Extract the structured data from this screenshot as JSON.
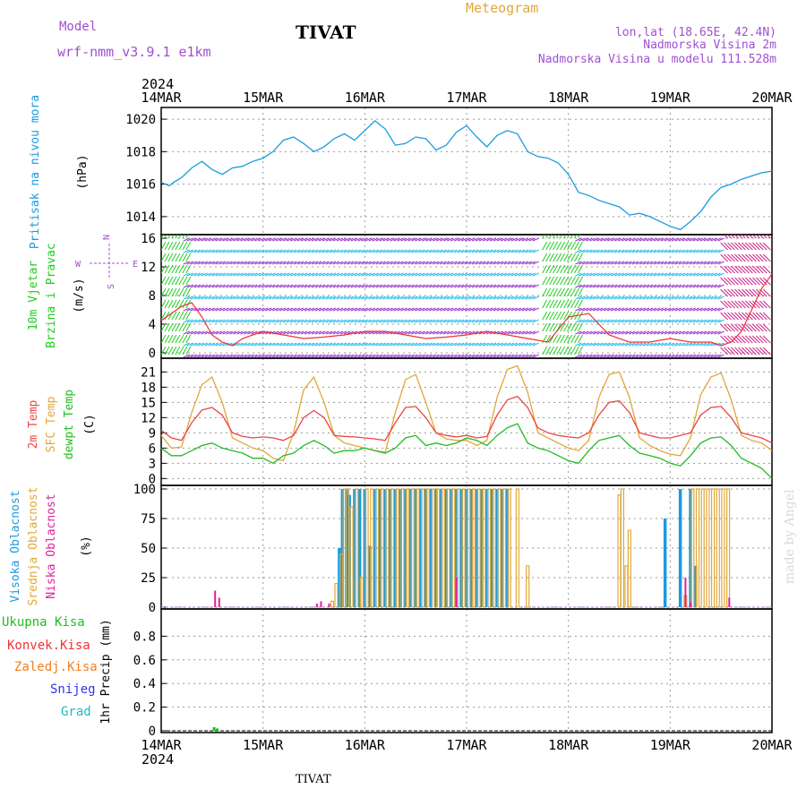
{
  "header": {
    "model_label": "Model",
    "model_name": "wrf-nmm_v3.9.1 e1km",
    "station": "TIVAT",
    "product": "Meteogram",
    "lonlat": "lon,lat (18.65E, 42.4N)",
    "altitude": "Nadmorska Visina 2m",
    "model_altitude": "Nadmorska Visina u modelu 111.528m",
    "credit": "made by Angel",
    "footer_station": "TIVAT"
  },
  "colors": {
    "pressure": "#1a9be0",
    "wind_green": "#22cc22",
    "wind_cyan": "#22bbee",
    "wind_purple": "#9933cc",
    "wind_red": "#ee3333",
    "wind_orange": "#f0a030",
    "wind_magenta": "#cc2288",
    "temp2m": "#ee4444",
    "sfc": "#e0a83a",
    "dewpt": "#22bb22",
    "cloud_high": "#1a9be0",
    "cloud_mid": "#e0a83a",
    "cloud_low": "#dd2299",
    "precip_total": "#22bb22",
    "precip_conv": "#ee3333",
    "precip_frz": "#f07f20",
    "precip_snow": "#3333ee",
    "precip_grad": "#22bbbb",
    "title_purple": "#a050d0",
    "title_orange": "#e0a83a"
  },
  "time_axis": {
    "year": "2024",
    "ticks": [
      "14MAR",
      "15MAR",
      "16MAR",
      "17MAR",
      "18MAR",
      "19MAR",
      "20MAR"
    ]
  },
  "compass": {
    "n": "N",
    "s": "S",
    "e": "E",
    "w": "W"
  },
  "chart_data": [
    {
      "type": "line",
      "panel": "pressure",
      "ylabel_title": "Pritisak na nivou mora",
      "ylabel_unit": "(hPa)",
      "ylim": [
        1013,
        1020.5
      ],
      "yticks": [
        1014,
        1016,
        1018,
        1020
      ],
      "grid": true,
      "series": [
        {
          "name": "Pritisak na nivou mora",
          "x": [
            0,
            0.08,
            0.12,
            0.2,
            0.3,
            0.4,
            0.5,
            0.6,
            0.7,
            0.8,
            0.9,
            1.0,
            1.1,
            1.2,
            1.3,
            1.4,
            1.5,
            1.6,
            1.7,
            1.8,
            1.9,
            2.0,
            2.1,
            2.2,
            2.3,
            2.4,
            2.5,
            2.6,
            2.7,
            2.8,
            2.9,
            3.0,
            3.1,
            3.2,
            3.3,
            3.4,
            3.5,
            3.6,
            3.7,
            3.8,
            3.9,
            4.0,
            4.1,
            4.2,
            4.3,
            4.4,
            4.5,
            4.6,
            4.7,
            4.8,
            4.9,
            5.0,
            5.1,
            5.2,
            5.3,
            5.4,
            5.5,
            5.6,
            5.7,
            5.8,
            5.9,
            6.0
          ],
          "y": [
            1016.1,
            1015.9,
            1016.1,
            1016.4,
            1017.0,
            1017.4,
            1016.9,
            1016.6,
            1017.0,
            1017.1,
            1017.4,
            1017.6,
            1018.0,
            1018.7,
            1018.9,
            1018.5,
            1018.0,
            1018.3,
            1018.8,
            1019.1,
            1018.7,
            1019.3,
            1019.9,
            1019.4,
            1018.4,
            1018.5,
            1018.9,
            1018.8,
            1018.1,
            1018.4,
            1019.2,
            1019.6,
            1018.9,
            1018.3,
            1019.0,
            1019.3,
            1019.1,
            1018.0,
            1017.7,
            1017.6,
            1017.3,
            1016.6,
            1015.5,
            1015.3,
            1015.0,
            1014.8,
            1014.6,
            1014.1,
            1014.2,
            1014.0,
            1013.7,
            1013.4,
            1013.2,
            1013.7,
            1014.3,
            1015.2,
            1015.8,
            1016.0,
            1016.3,
            1016.5,
            1016.7,
            1016.8
          ]
        }
      ]
    },
    {
      "type": "line",
      "panel": "wind",
      "ylabel_title": "10m Vjetar",
      "ylabel_title2": "Brzina i Pravac",
      "ylabel_unit": "(m/s)",
      "ylim": [
        -0.5,
        16
      ],
      "yticks": [
        0,
        4,
        8,
        12,
        16
      ],
      "grid": true,
      "series": [
        {
          "name": "Brzina",
          "x": [
            0,
            0.1,
            0.2,
            0.3,
            0.4,
            0.5,
            0.6,
            0.7,
            0.8,
            0.9,
            1.0,
            1.2,
            1.4,
            1.6,
            1.8,
            2.0,
            2.2,
            2.4,
            2.6,
            2.8,
            3.0,
            3.2,
            3.4,
            3.6,
            3.8,
            4.0,
            4.2,
            4.4,
            4.6,
            4.8,
            5.0,
            5.2,
            5.4,
            5.5,
            5.6,
            5.7,
            5.8,
            5.9,
            6.0
          ],
          "y": [
            4.5,
            5.5,
            6.5,
            7.0,
            5.0,
            2.5,
            1.5,
            1.0,
            2.0,
            2.5,
            3.0,
            2.5,
            2.0,
            2.2,
            2.5,
            3.0,
            3.0,
            2.5,
            2.0,
            2.2,
            2.5,
            3.0,
            2.5,
            2.0,
            1.5,
            5.0,
            5.5,
            2.5,
            1.5,
            1.5,
            2.0,
            1.5,
            1.5,
            1.0,
            1.5,
            3.0,
            6.0,
            9.0,
            11.0
          ]
        }
      ]
    },
    {
      "type": "line",
      "panel": "temperature",
      "ylabel_title": "2m Temp",
      "ylabel_title2": "SFC Temp",
      "ylabel_title3": "dewpt Temp",
      "ylabel_unit": "(C)",
      "ylim": [
        -1,
        23
      ],
      "yticks": [
        0,
        3,
        6,
        9,
        12,
        15,
        18,
        21
      ],
      "grid": true,
      "series": [
        {
          "name": "2m Temp",
          "x": [
            0,
            0.1,
            0.2,
            0.3,
            0.4,
            0.5,
            0.6,
            0.7,
            0.8,
            0.9,
            1.0,
            1.1,
            1.2,
            1.3,
            1.4,
            1.5,
            1.6,
            1.7,
            1.8,
            1.9,
            2.0,
            2.1,
            2.2,
            2.3,
            2.4,
            2.5,
            2.6,
            2.7,
            2.8,
            2.9,
            3.0,
            3.1,
            3.2,
            3.3,
            3.4,
            3.5,
            3.6,
            3.7,
            3.8,
            3.9,
            4.0,
            4.1,
            4.2,
            4.3,
            4.4,
            4.5,
            4.6,
            4.7,
            4.8,
            4.9,
            5.0,
            5.1,
            5.2,
            5.3,
            5.4,
            5.5,
            5.6,
            5.7,
            5.8,
            5.9,
            6.0
          ],
          "y": [
            9.5,
            8.0,
            7.5,
            11.0,
            13.5,
            14.0,
            12.5,
            9.0,
            8.3,
            8.0,
            8.2,
            8.0,
            7.5,
            8.5,
            12.0,
            13.4,
            12.0,
            8.5,
            8.3,
            8.2,
            8.0,
            7.8,
            7.5,
            11.0,
            14.0,
            14.2,
            12.0,
            9.0,
            8.5,
            8.2,
            8.5,
            8.0,
            8.3,
            12.5,
            15.5,
            16.2,
            14.0,
            10.0,
            9.0,
            8.5,
            8.2,
            8.0,
            9.0,
            12.5,
            15.0,
            15.3,
            13.0,
            9.0,
            8.5,
            8.0,
            8.0,
            8.5,
            9.0,
            12.5,
            14.0,
            14.2,
            12.0,
            9.0,
            8.5,
            8.0,
            7.0
          ]
        },
        {
          "name": "SFC Temp",
          "x": [
            0,
            0.1,
            0.2,
            0.3,
            0.4,
            0.5,
            0.6,
            0.7,
            0.8,
            0.9,
            1.0,
            1.1,
            1.2,
            1.3,
            1.4,
            1.5,
            1.6,
            1.7,
            1.8,
            1.9,
            2.0,
            2.1,
            2.2,
            2.3,
            2.4,
            2.5,
            2.6,
            2.7,
            2.8,
            2.9,
            3.0,
            3.1,
            3.2,
            3.3,
            3.4,
            3.5,
            3.6,
            3.7,
            3.8,
            3.9,
            4.0,
            4.1,
            4.2,
            4.3,
            4.4,
            4.5,
            4.6,
            4.7,
            4.8,
            4.9,
            5.0,
            5.1,
            5.2,
            5.3,
            5.4,
            5.5,
            5.6,
            5.7,
            5.8,
            5.9,
            6.0
          ],
          "y": [
            8.5,
            6.0,
            6.2,
            13.0,
            18.5,
            20.0,
            15.0,
            8.0,
            7.0,
            6.0,
            5.5,
            4.0,
            3.5,
            9.0,
            17.5,
            20.0,
            15.0,
            8.5,
            7.0,
            6.5,
            6.0,
            5.5,
            5.2,
            13.0,
            19.5,
            20.5,
            15.0,
            9.0,
            7.8,
            7.5,
            7.5,
            6.5,
            7.5,
            16.0,
            21.5,
            22.2,
            17.0,
            9.0,
            8.0,
            7.0,
            6.0,
            5.5,
            7.5,
            16.0,
            20.5,
            21.0,
            16.0,
            8.0,
            6.5,
            5.5,
            4.8,
            4.5,
            8.0,
            16.5,
            20.0,
            20.8,
            15.5,
            8.5,
            7.5,
            7.0,
            5.5
          ]
        },
        {
          "name": "dewpt Temp",
          "x": [
            0,
            0.1,
            0.2,
            0.3,
            0.4,
            0.5,
            0.6,
            0.7,
            0.8,
            0.9,
            1.0,
            1.1,
            1.2,
            1.3,
            1.4,
            1.5,
            1.6,
            1.7,
            1.8,
            1.9,
            2.0,
            2.1,
            2.2,
            2.3,
            2.4,
            2.5,
            2.6,
            2.7,
            2.8,
            2.9,
            3.0,
            3.1,
            3.2,
            3.3,
            3.4,
            3.5,
            3.6,
            3.7,
            3.8,
            3.9,
            4.0,
            4.1,
            4.2,
            4.3,
            4.4,
            4.5,
            4.6,
            4.7,
            4.8,
            4.9,
            5.0,
            5.1,
            5.2,
            5.3,
            5.4,
            5.5,
            5.6,
            5.7,
            5.8,
            5.9,
            6.0
          ],
          "y": [
            6.0,
            4.5,
            4.5,
            5.5,
            6.5,
            7.0,
            6.0,
            5.5,
            5.0,
            4.0,
            4.0,
            3.0,
            4.5,
            5.0,
            6.5,
            7.5,
            6.5,
            5.0,
            5.5,
            5.5,
            6.0,
            5.5,
            5.0,
            6.0,
            8.0,
            8.5,
            6.5,
            7.0,
            6.5,
            7.0,
            8.0,
            7.5,
            6.5,
            8.5,
            10.0,
            10.8,
            7.0,
            6.0,
            5.5,
            4.5,
            3.5,
            3.0,
            5.5,
            7.5,
            8.0,
            8.5,
            6.5,
            5.0,
            4.5,
            4.0,
            3.0,
            2.5,
            4.5,
            7.0,
            8.0,
            8.2,
            6.5,
            4.0,
            3.0,
            2.0,
            0.0
          ]
        }
      ]
    },
    {
      "type": "bar",
      "panel": "clouds",
      "ylabel_title": "Visoka Oblacnost",
      "ylabel_title2": "Srednja Oblacnost",
      "ylabel_title3": "Niska Oblacnost",
      "ylabel_unit": "(%)",
      "ylim": [
        0,
        100
      ],
      "yticks": [
        0,
        25,
        50,
        75,
        100
      ],
      "grid": true,
      "series": [
        {
          "name": "Visoka Oblacnost",
          "x": [
            1.75,
            1.78,
            1.82,
            1.85,
            1.9,
            1.95,
            2.0,
            2.05,
            2.1,
            2.15,
            2.2,
            2.25,
            2.3,
            2.35,
            2.4,
            2.45,
            2.5,
            2.55,
            2.6,
            2.65,
            2.7,
            2.75,
            2.8,
            2.85,
            2.9,
            2.95,
            3.0,
            3.05,
            3.1,
            3.15,
            3.2,
            3.25,
            3.3,
            3.35,
            3.4,
            4.95,
            5.1,
            5.2,
            5.25
          ],
          "y": [
            50,
            100,
            100,
            95,
            100,
            100,
            100,
            52,
            100,
            100,
            100,
            100,
            100,
            100,
            100,
            100,
            100,
            100,
            100,
            100,
            100,
            100,
            100,
            100,
            100,
            100,
            100,
            100,
            100,
            100,
            100,
            100,
            100,
            100,
            100,
            75,
            100,
            100,
            35
          ]
        },
        {
          "name": "Srednja Oblacnost",
          "x": [
            1.68,
            1.72,
            1.77,
            1.8,
            1.83,
            1.87,
            1.92,
            1.97,
            2.02,
            2.07,
            2.12,
            2.17,
            2.22,
            2.27,
            2.32,
            2.37,
            2.42,
            2.47,
            2.52,
            2.57,
            2.62,
            2.67,
            2.72,
            2.77,
            2.82,
            2.87,
            2.92,
            2.97,
            3.02,
            3.07,
            3.12,
            3.17,
            3.22,
            3.27,
            3.32,
            3.37,
            3.42,
            3.5,
            3.6,
            4.5,
            4.53,
            4.57,
            4.6,
            5.15,
            5.22,
            5.27,
            5.32,
            5.37,
            5.42,
            5.47,
            5.52,
            5.57
          ],
          "y": [
            5,
            20,
            45,
            100,
            100,
            85,
            100,
            25,
            100,
            100,
            100,
            100,
            100,
            100,
            100,
            100,
            100,
            100,
            100,
            100,
            100,
            100,
            100,
            100,
            100,
            100,
            100,
            100,
            100,
            100,
            100,
            100,
            100,
            100,
            100,
            100,
            100,
            100,
            35,
            95,
            100,
            35,
            65,
            10,
            100,
            100,
            100,
            100,
            100,
            100,
            100,
            100
          ]
        },
        {
          "name": "Niska Oblacnost",
          "x": [
            0.53,
            0.57,
            1.53,
            1.57,
            1.65,
            2.9,
            5.15,
            5.2,
            5.58
          ],
          "y": [
            14,
            8,
            3,
            5,
            3,
            25,
            25,
            4,
            8
          ]
        }
      ]
    },
    {
      "type": "bar",
      "panel": "precip",
      "ylabel_unit": "1hr Precip (mm)",
      "legend": [
        "Ukupna Kisa",
        "Konvek.Kisa",
        "Zaledj.Kisa",
        "Snijeg",
        "Grad"
      ],
      "ylim": [
        0,
        1.0
      ],
      "yticks": [
        0,
        0.2,
        0.4,
        0.6,
        0.8
      ],
      "grid": true,
      "series": [
        {
          "name": "Ukupna Kisa",
          "x": [
            0.52,
            0.55
          ],
          "y": [
            0.03,
            0.02
          ]
        },
        {
          "name": "Konvek.Kisa",
          "x": [],
          "y": []
        },
        {
          "name": "Zaledj.Kisa",
          "x": [],
          "y": []
        },
        {
          "name": "Snijeg",
          "x": [],
          "y": []
        },
        {
          "name": "Grad",
          "x": [],
          "y": []
        }
      ]
    }
  ]
}
